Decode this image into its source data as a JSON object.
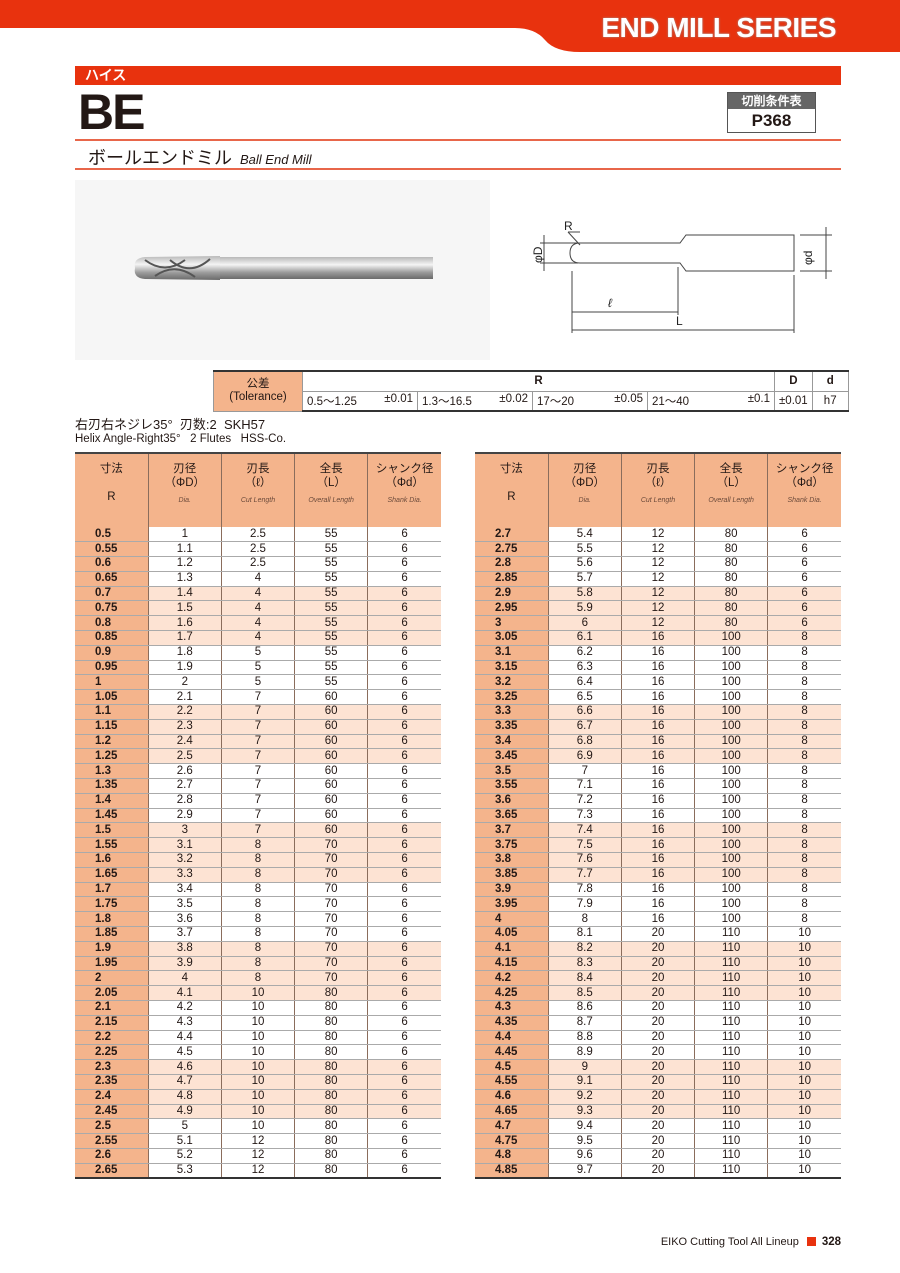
{
  "header": {
    "series": "END MILL SERIES",
    "category": "ハイス",
    "code": "BE",
    "cond_label": "切削条件表",
    "cond_page": "P368",
    "name_jp": "ボールエンドミル",
    "name_en": "Ball End Mill",
    "accent": "#e8320e"
  },
  "drawing": {
    "r": "R",
    "phi_D": "φD",
    "phi_d": "φd",
    "l": "ℓ",
    "L": "L"
  },
  "tolerance": {
    "label_jp": "公差",
    "label_en": "(Tolerance)",
    "R": "R",
    "D": "D",
    "d": "d",
    "ranges": [
      {
        "range": "0.5～1.25",
        "tol": "±0.01"
      },
      {
        "range": "1.3～16.5",
        "tol": "±0.02"
      },
      {
        "range": "17～20",
        "tol": "±0.05"
      },
      {
        "range": "21～40",
        "tol": "±0.1"
      }
    ],
    "D_tol": "±0.01",
    "d_tol": "h7"
  },
  "spec": {
    "jp": "右刃右ネジレ35°  刃数:2  SKH57",
    "en": "Helix Angle-Right35°   2 Flutes   HSS-Co."
  },
  "columns": [
    {
      "jp": "寸法",
      "sym": "",
      "en": "",
      "sub": "R"
    },
    {
      "jp": "刃径",
      "sym": "（ΦD）",
      "en": "Dia."
    },
    {
      "jp": "刃長",
      "sym": "（ℓ）",
      "en": "Cut Length"
    },
    {
      "jp": "全長",
      "sym": "（L）",
      "en": "Overall Length"
    },
    {
      "jp": "シャンク径",
      "sym": "（Φd）",
      "en": "Shank Dia."
    }
  ],
  "tables": [
    {
      "rows": [
        [
          "0.5",
          "1",
          "2.5",
          "55",
          "6"
        ],
        [
          "0.55",
          "1.1",
          "2.5",
          "55",
          "6"
        ],
        [
          "0.6",
          "1.2",
          "2.5",
          "55",
          "6"
        ],
        [
          "0.65",
          "1.3",
          "4",
          "55",
          "6"
        ],
        [
          "0.7",
          "1.4",
          "4",
          "55",
          "6"
        ],
        [
          "0.75",
          "1.5",
          "4",
          "55",
          "6"
        ],
        [
          "0.8",
          "1.6",
          "4",
          "55",
          "6"
        ],
        [
          "0.85",
          "1.7",
          "4",
          "55",
          "6"
        ],
        [
          "0.9",
          "1.8",
          "5",
          "55",
          "6"
        ],
        [
          "0.95",
          "1.9",
          "5",
          "55",
          "6"
        ],
        [
          "1",
          "2",
          "5",
          "55",
          "6"
        ],
        [
          "1.05",
          "2.1",
          "7",
          "60",
          "6"
        ],
        [
          "1.1",
          "2.2",
          "7",
          "60",
          "6"
        ],
        [
          "1.15",
          "2.3",
          "7",
          "60",
          "6"
        ],
        [
          "1.2",
          "2.4",
          "7",
          "60",
          "6"
        ],
        [
          "1.25",
          "2.5",
          "7",
          "60",
          "6"
        ],
        [
          "1.3",
          "2.6",
          "7",
          "60",
          "6"
        ],
        [
          "1.35",
          "2.7",
          "7",
          "60",
          "6"
        ],
        [
          "1.4",
          "2.8",
          "7",
          "60",
          "6"
        ],
        [
          "1.45",
          "2.9",
          "7",
          "60",
          "6"
        ],
        [
          "1.5",
          "3",
          "7",
          "60",
          "6"
        ],
        [
          "1.55",
          "3.1",
          "8",
          "70",
          "6"
        ],
        [
          "1.6",
          "3.2",
          "8",
          "70",
          "6"
        ],
        [
          "1.65",
          "3.3",
          "8",
          "70",
          "6"
        ],
        [
          "1.7",
          "3.4",
          "8",
          "70",
          "6"
        ],
        [
          "1.75",
          "3.5",
          "8",
          "70",
          "6"
        ],
        [
          "1.8",
          "3.6",
          "8",
          "70",
          "6"
        ],
        [
          "1.85",
          "3.7",
          "8",
          "70",
          "6"
        ],
        [
          "1.9",
          "3.8",
          "8",
          "70",
          "6"
        ],
        [
          "1.95",
          "3.9",
          "8",
          "70",
          "6"
        ],
        [
          "2",
          "4",
          "8",
          "70",
          "6"
        ],
        [
          "2.05",
          "4.1",
          "10",
          "80",
          "6"
        ],
        [
          "2.1",
          "4.2",
          "10",
          "80",
          "6"
        ],
        [
          "2.15",
          "4.3",
          "10",
          "80",
          "6"
        ],
        [
          "2.2",
          "4.4",
          "10",
          "80",
          "6"
        ],
        [
          "2.25",
          "4.5",
          "10",
          "80",
          "6"
        ],
        [
          "2.3",
          "4.6",
          "10",
          "80",
          "6"
        ],
        [
          "2.35",
          "4.7",
          "10",
          "80",
          "6"
        ],
        [
          "2.4",
          "4.8",
          "10",
          "80",
          "6"
        ],
        [
          "2.45",
          "4.9",
          "10",
          "80",
          "6"
        ],
        [
          "2.5",
          "5",
          "10",
          "80",
          "6"
        ],
        [
          "2.55",
          "5.1",
          "12",
          "80",
          "6"
        ],
        [
          "2.6",
          "5.2",
          "12",
          "80",
          "6"
        ],
        [
          "2.65",
          "5.3",
          "12",
          "80",
          "6"
        ]
      ]
    },
    {
      "rows": [
        [
          "2.7",
          "5.4",
          "12",
          "80",
          "6"
        ],
        [
          "2.75",
          "5.5",
          "12",
          "80",
          "6"
        ],
        [
          "2.8",
          "5.6",
          "12",
          "80",
          "6"
        ],
        [
          "2.85",
          "5.7",
          "12",
          "80",
          "6"
        ],
        [
          "2.9",
          "5.8",
          "12",
          "80",
          "6"
        ],
        [
          "2.95",
          "5.9",
          "12",
          "80",
          "6"
        ],
        [
          "3",
          "6",
          "12",
          "80",
          "6"
        ],
        [
          "3.05",
          "6.1",
          "16",
          "100",
          "8"
        ],
        [
          "3.1",
          "6.2",
          "16",
          "100",
          "8"
        ],
        [
          "3.15",
          "6.3",
          "16",
          "100",
          "8"
        ],
        [
          "3.2",
          "6.4",
          "16",
          "100",
          "8"
        ],
        [
          "3.25",
          "6.5",
          "16",
          "100",
          "8"
        ],
        [
          "3.3",
          "6.6",
          "16",
          "100",
          "8"
        ],
        [
          "3.35",
          "6.7",
          "16",
          "100",
          "8"
        ],
        [
          "3.4",
          "6.8",
          "16",
          "100",
          "8"
        ],
        [
          "3.45",
          "6.9",
          "16",
          "100",
          "8"
        ],
        [
          "3.5",
          "7",
          "16",
          "100",
          "8"
        ],
        [
          "3.55",
          "7.1",
          "16",
          "100",
          "8"
        ],
        [
          "3.6",
          "7.2",
          "16",
          "100",
          "8"
        ],
        [
          "3.65",
          "7.3",
          "16",
          "100",
          "8"
        ],
        [
          "3.7",
          "7.4",
          "16",
          "100",
          "8"
        ],
        [
          "3.75",
          "7.5",
          "16",
          "100",
          "8"
        ],
        [
          "3.8",
          "7.6",
          "16",
          "100",
          "8"
        ],
        [
          "3.85",
          "7.7",
          "16",
          "100",
          "8"
        ],
        [
          "3.9",
          "7.8",
          "16",
          "100",
          "8"
        ],
        [
          "3.95",
          "7.9",
          "16",
          "100",
          "8"
        ],
        [
          "4",
          "8",
          "16",
          "100",
          "8"
        ],
        [
          "4.05",
          "8.1",
          "20",
          "110",
          "10"
        ],
        [
          "4.1",
          "8.2",
          "20",
          "110",
          "10"
        ],
        [
          "4.15",
          "8.3",
          "20",
          "110",
          "10"
        ],
        [
          "4.2",
          "8.4",
          "20",
          "110",
          "10"
        ],
        [
          "4.25",
          "8.5",
          "20",
          "110",
          "10"
        ],
        [
          "4.3",
          "8.6",
          "20",
          "110",
          "10"
        ],
        [
          "4.35",
          "8.7",
          "20",
          "110",
          "10"
        ],
        [
          "4.4",
          "8.8",
          "20",
          "110",
          "10"
        ],
        [
          "4.45",
          "8.9",
          "20",
          "110",
          "10"
        ],
        [
          "4.5",
          "9",
          "20",
          "110",
          "10"
        ],
        [
          "4.55",
          "9.1",
          "20",
          "110",
          "10"
        ],
        [
          "4.6",
          "9.2",
          "20",
          "110",
          "10"
        ],
        [
          "4.65",
          "9.3",
          "20",
          "110",
          "10"
        ],
        [
          "4.7",
          "9.4",
          "20",
          "110",
          "10"
        ],
        [
          "4.75",
          "9.5",
          "20",
          "110",
          "10"
        ],
        [
          "4.8",
          "9.6",
          "20",
          "110",
          "10"
        ],
        [
          "4.85",
          "9.7",
          "20",
          "110",
          "10"
        ]
      ]
    }
  ],
  "footer": {
    "text": "EIKO Cutting Tool All Lineup",
    "page": "328"
  }
}
